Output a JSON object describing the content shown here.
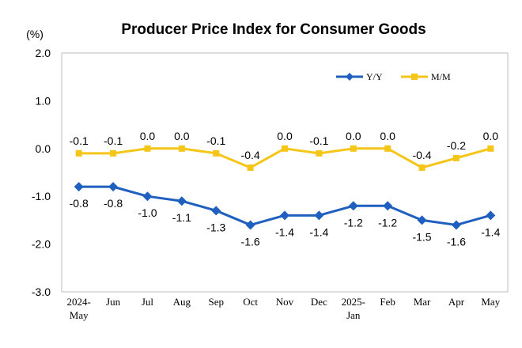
{
  "chart_data": {
    "type": "line",
    "title": "Producer Price Index for Consumer Goods",
    "unit_label": "(%)",
    "ylim": [
      -3.0,
      2.0
    ],
    "yticks": [
      "2.0",
      "1.0",
      "0.0",
      "-1.0",
      "-2.0",
      "-3.0"
    ],
    "ytick_values": [
      2.0,
      1.0,
      0.0,
      -1.0,
      -2.0,
      -3.0
    ],
    "categories": [
      [
        "2024-",
        "May"
      ],
      [
        "Jun"
      ],
      [
        "Jul"
      ],
      [
        "Aug"
      ],
      [
        "Sep"
      ],
      [
        "Oct"
      ],
      [
        "Nov"
      ],
      [
        "Dec"
      ],
      [
        "2025-",
        "Jan"
      ],
      [
        "Feb"
      ],
      [
        "Mar"
      ],
      [
        "Apr"
      ],
      [
        "May"
      ]
    ],
    "grid": false,
    "legend_position": "top-right",
    "series": [
      {
        "name": "Y/Y",
        "color": "#1f5fbf",
        "marker": "diamond",
        "values": [
          -0.8,
          -0.8,
          -1.0,
          -1.1,
          -1.3,
          -1.6,
          -1.4,
          -1.4,
          -1.2,
          -1.2,
          -1.5,
          -1.6,
          -1.4
        ],
        "labels": [
          "-0.8",
          "-0.8",
          "-1.0",
          "-1.1",
          "-1.3",
          "-1.6",
          "-1.4",
          "-1.4",
          "-1.2",
          "-1.2",
          "-1.5",
          "-1.6",
          "-1.4"
        ]
      },
      {
        "name": "M/M",
        "color": "#f5c518",
        "marker": "square",
        "values": [
          -0.1,
          -0.1,
          0.0,
          0.0,
          -0.1,
          -0.4,
          0.0,
          -0.1,
          0.0,
          0.0,
          -0.4,
          -0.2,
          0.0
        ],
        "labels": [
          "-0.1",
          "-0.1",
          "0.0",
          "0.0",
          "-0.1",
          "-0.4",
          "0.0",
          "-0.1",
          "0.0",
          "0.0",
          "-0.4",
          "-0.2",
          "0.0"
        ]
      }
    ]
  }
}
